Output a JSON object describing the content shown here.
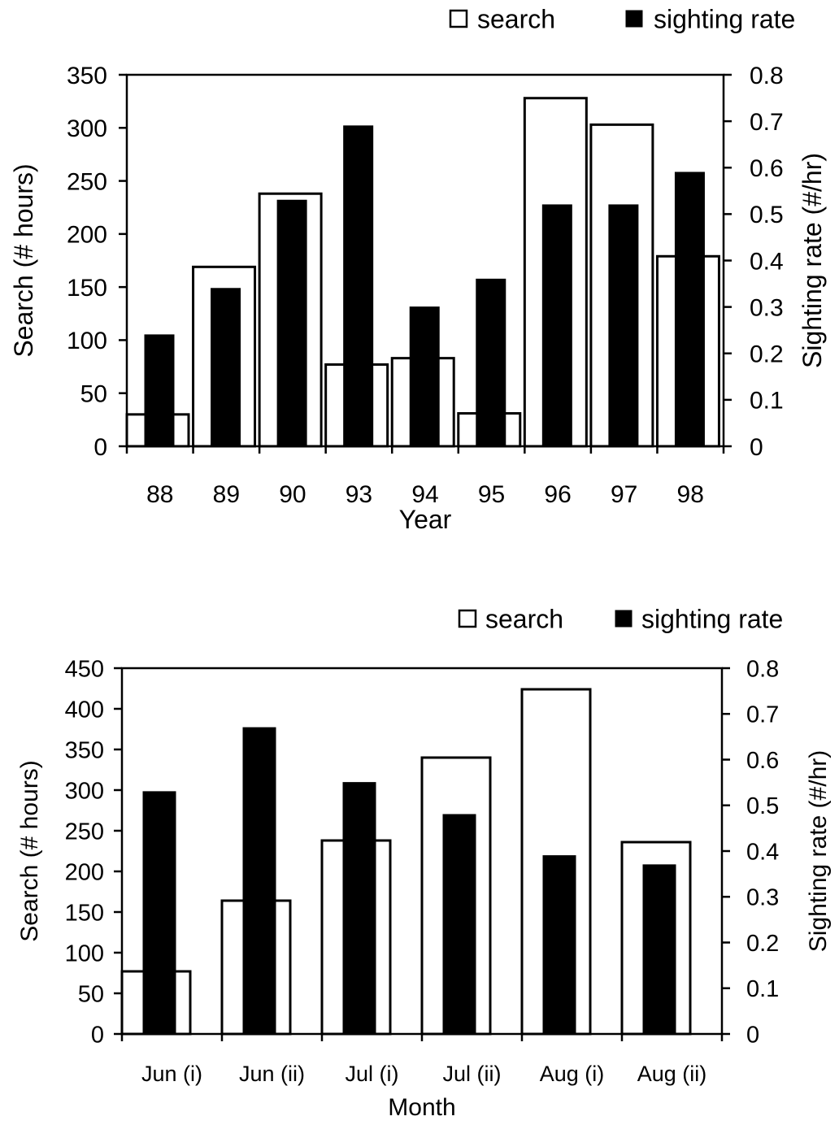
{
  "chart_data": [
    {
      "type": "bar",
      "categories": [
        "88",
        "89",
        "90",
        "93",
        "94",
        "95",
        "96",
        "97",
        "98"
      ],
      "series": [
        {
          "name": "search",
          "axis": "left",
          "fill": "#ffffff",
          "values": [
            30,
            169,
            238,
            77,
            83,
            31,
            328,
            303,
            179
          ]
        },
        {
          "name": "sighting rate",
          "axis": "right",
          "fill": "#000000",
          "values": [
            0.24,
            0.34,
            0.53,
            0.69,
            0.3,
            0.36,
            0.52,
            0.52,
            0.59
          ]
        }
      ],
      "xlabel": "Year",
      "ylabel": "Search (# hours)",
      "y2label": "Sighting rate (#/hr)",
      "ylim": [
        0,
        350
      ],
      "yticks": [
        "0",
        "50",
        "100",
        "150",
        "200",
        "250",
        "300",
        "350"
      ],
      "y2lim": [
        0,
        0.8
      ],
      "y2ticks": [
        "0",
        "0.1",
        "0.2",
        "0.3",
        "0.4",
        "0.5",
        "0.6",
        "0.7",
        "0.8"
      ],
      "legend": "top-right",
      "grid": false
    },
    {
      "type": "bar",
      "categories": [
        "Jun (i)",
        "Jun (ii)",
        "Jul (i)",
        "Jul (ii)",
        "Aug (i)",
        "Aug (ii)"
      ],
      "series": [
        {
          "name": "search",
          "axis": "left",
          "fill": "#ffffff",
          "values": [
            77,
            164,
            238,
            340,
            424,
            236
          ]
        },
        {
          "name": "sighting rate",
          "axis": "right",
          "fill": "#000000",
          "values": [
            0.53,
            0.67,
            0.55,
            0.48,
            0.39,
            0.37
          ]
        }
      ],
      "xlabel": "Month",
      "ylabel": "Search (# hours)",
      "y2label": "Sighting rate (#/hr)",
      "ylim": [
        0,
        450
      ],
      "yticks": [
        "0",
        "50",
        "100",
        "150",
        "200",
        "250",
        "300",
        "350",
        "400",
        "450"
      ],
      "y2lim": [
        0,
        0.8
      ],
      "y2ticks": [
        "0",
        "0.1",
        "0.2",
        "0.3",
        "0.4",
        "0.5",
        "0.6",
        "0.7",
        "0.8"
      ],
      "legend": "top-right",
      "grid": false
    }
  ]
}
